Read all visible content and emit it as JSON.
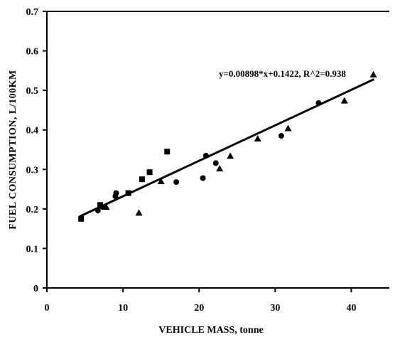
{
  "chart_data": {
    "type": "scatter",
    "title": "",
    "xlabel": "VEHICLE MASS, tonne",
    "ylabel": "FUEL CONSUMPTION, L/100KM",
    "xlim": [
      0,
      45
    ],
    "ylim": [
      0,
      0.7
    ],
    "xticks": [
      "0",
      "10",
      "20",
      "30",
      "40"
    ],
    "yticks": [
      "0",
      "0.1",
      "0.2",
      "0.3",
      "0.4",
      "0.5",
      "0.6",
      "0.7"
    ],
    "xtick_values": [
      0,
      10,
      20,
      30,
      40
    ],
    "ytick_values": [
      0,
      0.1,
      0.2,
      0.3,
      0.4,
      0.5,
      0.6,
      0.7
    ],
    "grid": false,
    "legend": "none",
    "series": [
      {
        "marker": "square",
        "x": [
          4.5,
          7.0,
          10.7,
          12.5,
          13.5,
          15.8
        ],
        "y": [
          0.175,
          0.21,
          0.24,
          0.275,
          0.293,
          0.345
        ]
      },
      {
        "marker": "circle",
        "x": [
          6.7,
          7.3,
          9.0,
          9.1,
          17.0,
          20.5,
          20.9,
          22.2,
          30.8,
          35.7
        ],
        "y": [
          0.196,
          0.205,
          0.232,
          0.24,
          0.268,
          0.278,
          0.335,
          0.316,
          0.385,
          0.468
        ]
      },
      {
        "marker": "triangle",
        "x": [
          7.8,
          12.1,
          15.0,
          22.7,
          24.1,
          27.7,
          31.7,
          39.1,
          42.9
        ],
        "y": [
          0.205,
          0.19,
          0.27,
          0.302,
          0.334,
          0.378,
          0.404,
          0.474,
          0.54
        ]
      }
    ],
    "trendline": {
      "slope": 0.00898,
      "intercept": 0.1422,
      "x_range": [
        4.3,
        43.0
      ],
      "label": "y=0.00898*x+0.1422, R^2=0.938"
    }
  }
}
